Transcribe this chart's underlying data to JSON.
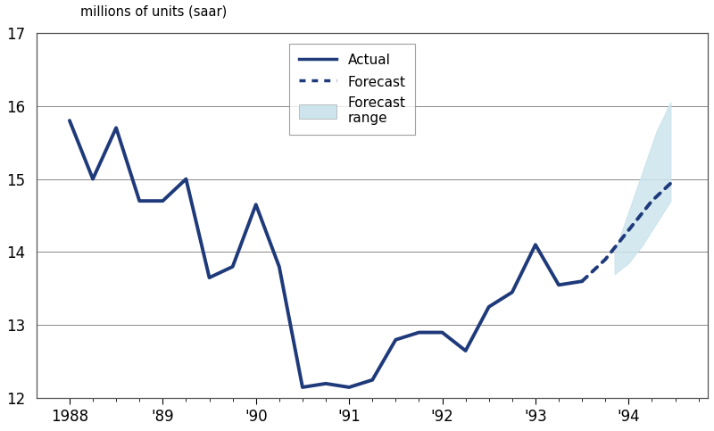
{
  "actual_x": [
    1988.0,
    1988.25,
    1988.5,
    1988.75,
    1989.0,
    1989.25,
    1989.5,
    1989.75,
    1990.0,
    1990.25,
    1990.5,
    1990.75,
    1991.0,
    1991.25,
    1991.5,
    1991.75,
    1992.0,
    1992.25,
    1992.5,
    1992.75,
    1993.0,
    1993.25,
    1993.5
  ],
  "actual_y": [
    15.8,
    15.0,
    15.7,
    14.7,
    14.7,
    15.0,
    13.65,
    13.8,
    14.65,
    13.8,
    12.15,
    12.2,
    12.15,
    12.25,
    12.8,
    12.9,
    12.9,
    12.65,
    13.25,
    13.45,
    14.1,
    13.55,
    13.6
  ],
  "forecast_x": [
    1993.5,
    1993.75,
    1994.0,
    1994.25,
    1994.5
  ],
  "forecast_y": [
    13.6,
    13.9,
    14.3,
    14.7,
    15.0
  ],
  "forecast_range_x": [
    1993.85,
    1994.0,
    1994.15,
    1994.3,
    1994.45
  ],
  "forecast_range_low": [
    13.7,
    13.85,
    14.1,
    14.4,
    14.7
  ],
  "forecast_range_high": [
    14.0,
    14.55,
    15.1,
    15.65,
    16.05
  ],
  "line_color": "#1f3a7a",
  "forecast_range_color": "#cde4ed",
  "ylim": [
    12,
    17
  ],
  "xlim": [
    1987.65,
    1994.85
  ],
  "yticks": [
    12,
    13,
    14,
    15,
    16,
    17
  ],
  "xtick_positions": [
    1988,
    1989,
    1990,
    1991,
    1992,
    1993,
    1994
  ],
  "xtick_labels": [
    "1988",
    "'89",
    "'90",
    "'91",
    "'92",
    "'93",
    "'94"
  ],
  "ylabel": "millions of units (saar)",
  "bg_color": "#ffffff",
  "plot_bg_color": "#ffffff",
  "grid_color": "#888888",
  "legend_actual": "Actual",
  "legend_forecast": "Forecast",
  "legend_range": "Forecast\nrange"
}
